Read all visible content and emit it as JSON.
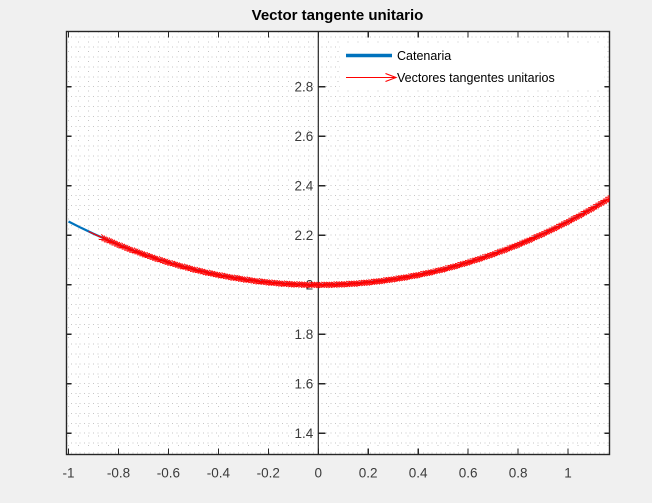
{
  "figure": {
    "background": "#f0f0f0",
    "plot_background": "#ffffff",
    "axis_color": "#262626",
    "tick_label_color": "#3b3b3b"
  },
  "chart_data": {
    "type": "line",
    "title": "Vector tangente unitario",
    "xlabel": "",
    "ylabel": "",
    "xlim": [
      -1.008,
      1.166
    ],
    "ylim": [
      1.314,
      3.023
    ],
    "x_ticks": {
      "values": [
        -1,
        -0.8,
        -0.6,
        -0.4,
        -0.2,
        0,
        0.2,
        0.4,
        0.6,
        0.8,
        1
      ],
      "labels": [
        "-1",
        "-0.8",
        "-0.6",
        "-0.4",
        "-0.2",
        "0",
        "0.2",
        "0.4",
        "0.6",
        "0.8",
        "1"
      ]
    },
    "y_ticks": {
      "values": [
        1.4,
        1.6,
        1.8,
        2,
        2.2,
        2.4,
        2.6,
        2.8
      ],
      "labels": [
        "1.4",
        "1.6",
        "1.8",
        "2",
        "2.2",
        "2.4",
        "2.6",
        "2.8"
      ]
    },
    "y_axis_location": "origin",
    "grid": {
      "minor": true,
      "style": "dotted",
      "step_x": 0.04,
      "step_y": 0.04,
      "color": "#c6c6c6"
    },
    "legend": {
      "position": "northeast",
      "box": false,
      "entries": [
        {
          "label": "Catenaria",
          "color": "#0072BD",
          "style": "thick-line"
        },
        {
          "label": "Vectores tangentes unitarios",
          "color": "#ff0000",
          "style": "arrow"
        }
      ]
    },
    "series": [
      {
        "name": "Catenaria",
        "type": "line",
        "color": "#0072BD",
        "line_width": 2.2,
        "formula": "y = 2*cosh(x/2)",
        "points": [
          [
            -1,
            2.2553
          ],
          [
            -0.95,
            2.2299
          ],
          [
            -0.9,
            2.2059
          ],
          [
            -0.85,
            2.1834
          ],
          [
            -0.8,
            2.1621
          ],
          [
            -0.75,
            2.1423
          ],
          [
            -0.7,
            2.1238
          ],
          [
            -0.65,
            2.1066
          ],
          [
            -0.6,
            2.0907
          ],
          [
            -0.55,
            2.0761
          ],
          [
            -0.5,
            2.0628
          ],
          [
            -0.45,
            2.0508
          ],
          [
            -0.4,
            2.0401
          ],
          [
            -0.35,
            2.0307
          ],
          [
            -0.3,
            2.0225
          ],
          [
            -0.25,
            2.0157
          ],
          [
            -0.2,
            2.01
          ],
          [
            -0.15,
            2.0056
          ],
          [
            -0.1,
            2.0025
          ],
          [
            -0.05,
            2.0006
          ],
          [
            0,
            2
          ],
          [
            0.05,
            2.0006
          ],
          [
            0.1,
            2.0025
          ],
          [
            0.15,
            2.0056
          ],
          [
            0.2,
            2.01
          ],
          [
            0.25,
            2.0157
          ],
          [
            0.3,
            2.0225
          ],
          [
            0.35,
            2.0307
          ],
          [
            0.4,
            2.0401
          ],
          [
            0.45,
            2.0508
          ],
          [
            0.5,
            2.0628
          ],
          [
            0.55,
            2.0761
          ],
          [
            0.6,
            2.0907
          ],
          [
            0.65,
            2.1066
          ],
          [
            0.7,
            2.1238
          ],
          [
            0.75,
            2.1423
          ],
          [
            0.8,
            2.1621
          ],
          [
            0.85,
            2.1834
          ],
          [
            0.9,
            2.2059
          ],
          [
            0.95,
            2.2299
          ],
          [
            1,
            2.2553
          ],
          [
            1.05,
            2.282
          ],
          [
            1.1,
            2.3102
          ],
          [
            1.15,
            2.3399
          ]
        ]
      },
      {
        "name": "Vectores tangentes unitarios",
        "type": "quiver",
        "color": "#ff0000",
        "description": "unit tangent vectors along the catenary",
        "t_start": -0.92,
        "t_end": 1.15,
        "t_step": 0.01,
        "scale": 0.075
      }
    ]
  }
}
